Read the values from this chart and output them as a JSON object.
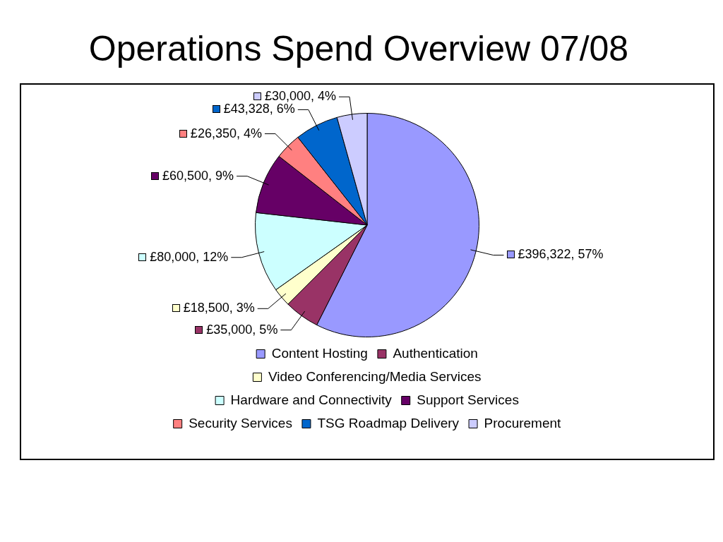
{
  "chart_data": {
    "type": "pie",
    "title": "Operations Spend Overview 07/08",
    "categories": [
      "Content Hosting",
      "Authentication",
      "Video Conferencing/Media Services",
      "Hardware and Connectivity",
      "Support Services",
      "Security Services",
      "TSG Roadmap Delivery",
      "Procurement"
    ],
    "values": [
      396322,
      35000,
      18500,
      80000,
      60500,
      26350,
      43328,
      30000
    ],
    "value_labels": [
      "£396,322, 57%",
      "£35,000, 5%",
      "£18,500, 3%",
      "£80,000, 12%",
      "£60,500, 9%",
      "£26,350, 4%",
      "£43,328, 6%",
      "£30,000, 4%"
    ],
    "colors": [
      "#9999ff",
      "#993366",
      "#ffffcc",
      "#ccffff",
      "#660066",
      "#ff8080",
      "#0066cc",
      "#ccccff"
    ],
    "legend": "bottom"
  }
}
